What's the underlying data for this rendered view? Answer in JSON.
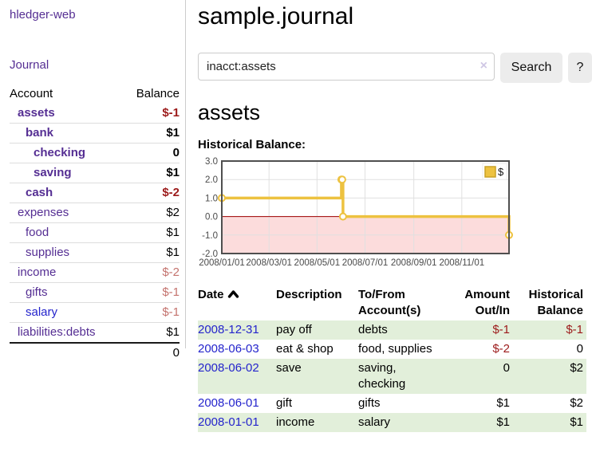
{
  "app": {
    "title": "hledger-web"
  },
  "sidebar": {
    "journal_link": "Journal",
    "table": {
      "account_header": "Account",
      "balance_header": "Balance",
      "rows": [
        {
          "name": "assets",
          "balance": "$-1",
          "indent": 1,
          "bold": true,
          "balance_style": "neg-strong",
          "link_style": "purple"
        },
        {
          "name": "bank",
          "balance": "$1",
          "indent": 2,
          "bold": true,
          "balance_style": "pos",
          "link_style": "purple"
        },
        {
          "name": "checking",
          "balance": "0",
          "indent": 3,
          "bold": true,
          "balance_style": "pos",
          "link_style": "purple"
        },
        {
          "name": "saving",
          "balance": "$1",
          "indent": 3,
          "bold": true,
          "balance_style": "pos",
          "link_style": "purple"
        },
        {
          "name": "cash",
          "balance": "$-2",
          "indent": 2,
          "bold": true,
          "balance_style": "neg-strong",
          "link_style": "purple"
        },
        {
          "name": "expenses",
          "balance": "$2",
          "indent": 1,
          "bold": false,
          "balance_style": "pos",
          "link_style": "purple"
        },
        {
          "name": "food",
          "balance": "$1",
          "indent": 2,
          "bold": false,
          "balance_style": "pos",
          "link_style": "purple"
        },
        {
          "name": "supplies",
          "balance": "$1",
          "indent": 2,
          "bold": false,
          "balance_style": "pos",
          "link_style": "purple"
        },
        {
          "name": "income",
          "balance": "$-2",
          "indent": 1,
          "bold": false,
          "balance_style": "neg-soft",
          "link_style": "purple"
        },
        {
          "name": "gifts",
          "balance": "$-1",
          "indent": 2,
          "bold": false,
          "balance_style": "neg-soft",
          "link_style": "purple"
        },
        {
          "name": "salary",
          "balance": "$-1",
          "indent": 2,
          "bold": false,
          "balance_style": "neg-soft",
          "link_style": "blue"
        },
        {
          "name": "liabilities:debts",
          "balance": "$1",
          "indent": 1,
          "bold": false,
          "balance_style": "pos",
          "link_style": "purple"
        }
      ],
      "total": "0"
    }
  },
  "main": {
    "title": "sample.journal",
    "search": {
      "value": "inacct:assets",
      "clear_icon": "×",
      "button_label": "Search",
      "help_label": "?"
    },
    "account_heading": "assets",
    "chart_label": "Historical Balance:",
    "register": {
      "headers": {
        "date": "Date",
        "description": "Description",
        "account": "To/From Account(s)",
        "amount": "Amount Out/In",
        "balance": "Historical Balance"
      },
      "rows": [
        {
          "date": "2008-12-31",
          "description": "pay off",
          "account_lines": [
            "debts"
          ],
          "amount": "$-1",
          "amount_neg": true,
          "balance": "$-1",
          "balance_neg": true
        },
        {
          "date": "2008-06-03",
          "description": "eat & shop",
          "account_lines": [
            "food, supplies"
          ],
          "amount": "$-2",
          "amount_neg": true,
          "balance": "0",
          "balance_neg": false
        },
        {
          "date": "2008-06-02",
          "description": "save",
          "account_lines": [
            "saving,",
            "checking"
          ],
          "amount": "0",
          "amount_neg": false,
          "balance": "$2",
          "balance_neg": false
        },
        {
          "date": "2008-06-01",
          "description": "gift",
          "account_lines": [
            "gifts"
          ],
          "amount": "$1",
          "amount_neg": false,
          "balance": "$2",
          "balance_neg": false
        },
        {
          "date": "2008-01-01",
          "description": "income",
          "account_lines": [
            "salary"
          ],
          "amount": "$1",
          "amount_neg": false,
          "balance": "$1",
          "balance_neg": false
        }
      ]
    }
  },
  "chart_data": {
    "type": "line",
    "step": true,
    "title": "Historical Balance",
    "series": [
      {
        "name": "$",
        "color": "#edc240",
        "marker_fill": "#ffffff",
        "points": [
          [
            "2008-01-01",
            1
          ],
          [
            "2008-06-01",
            2
          ],
          [
            "2008-06-02",
            2
          ],
          [
            "2008-06-03",
            0
          ],
          [
            "2008-12-31",
            -1
          ]
        ]
      }
    ],
    "xlim": [
      "2008-01-01",
      "2008-12-31"
    ],
    "ylim": [
      -2,
      3
    ],
    "xticks": [
      "2008/01/01",
      "2008/03/01",
      "2008/05/01",
      "2008/07/01",
      "2008/09/01",
      "2008/11/01"
    ],
    "yticks": [
      3.0,
      2.0,
      1.0,
      0.0,
      -1.0,
      -2.0
    ],
    "grid": true,
    "grid_color": "#e0e0e0",
    "border_color": "#4f4f4f",
    "negative_fill": "#fcdcdc",
    "zero_line_color": "#a00000",
    "tick_label_color": "#4a4a4a",
    "legend_position": "top-right",
    "legend_swatch_border": "#c9a227"
  }
}
